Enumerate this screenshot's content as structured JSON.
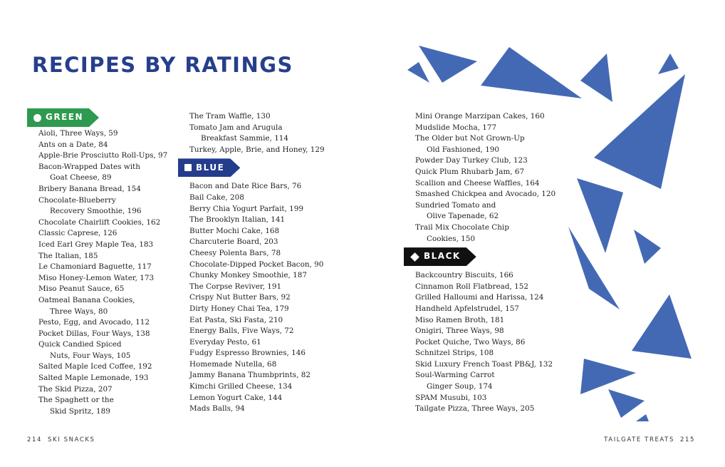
{
  "title": "RECIPES BY RATINGS",
  "colors": {
    "green": "#2e9a4f",
    "blue": "#243c8c",
    "black": "#111111",
    "title": "#263f8c",
    "triangles": "#4469b4"
  },
  "sections": {
    "green": {
      "label": "GREEN",
      "icon": "circle-icon"
    },
    "blue": {
      "label": "BLUE",
      "icon": "square-icon"
    },
    "black": {
      "label": "BLACK",
      "icon": "diamond-icon"
    }
  },
  "columns": [
    [
      {
        "tag": "green"
      },
      {
        "lines": [
          "Aioli, Three Ways, 59"
        ]
      },
      {
        "lines": [
          "Ants on a Date, 84"
        ]
      },
      {
        "lines": [
          "Apple-Brie Prosciutto Roll-Ups, 97"
        ]
      },
      {
        "lines": [
          "Bacon-Wrapped Dates with",
          "Goat Cheese, 89"
        ]
      },
      {
        "lines": [
          "Bribery Banana Bread, 154"
        ]
      },
      {
        "lines": [
          "Chocolate-Blueberry",
          "Recovery Smoothie, 196"
        ]
      },
      {
        "lines": [
          "Chocolate Chairlift Cookies, 162"
        ]
      },
      {
        "lines": [
          "Classic Caprese, 126"
        ]
      },
      {
        "lines": [
          "Iced Earl Grey Maple Tea, 183"
        ]
      },
      {
        "lines": [
          "The Italian, 185"
        ]
      },
      {
        "lines": [
          "Le Chamoniard Baguette, 117"
        ]
      },
      {
        "lines": [
          "Miso Honey-Lemon Water, 173"
        ]
      },
      {
        "lines": [
          "Miso Peanut Sauce, 65"
        ]
      },
      {
        "lines": [
          "Oatmeal Banana Cookies,",
          "Three Ways, 80"
        ]
      },
      {
        "lines": [
          "Pesto, Egg, and Avocado, 112"
        ]
      },
      {
        "lines": [
          "Pocket Dillas, Four Ways, 138"
        ]
      },
      {
        "lines": [
          "Quick Candied Spiced",
          "Nuts, Four Ways, 105"
        ]
      },
      {
        "lines": [
          "Salted Maple Iced Coffee, 192"
        ]
      },
      {
        "lines": [
          "Salted Maple Lemonade, 193"
        ]
      },
      {
        "lines": [
          "The Skid Pizza, 207"
        ]
      },
      {
        "lines": [
          "The Spaghett or the",
          "Skid Spritz, 189"
        ]
      }
    ],
    [
      {
        "lines": [
          "The Tram Waffle, 130"
        ]
      },
      {
        "lines": [
          "Tomato Jam and Arugula",
          "Breakfast Sammie, 114"
        ]
      },
      {
        "lines": [
          "Turkey, Apple, Brie, and Honey, 129"
        ]
      },
      {
        "tag": "blue"
      },
      {
        "lines": [
          "Bacon and Date Rice Bars, 76"
        ]
      },
      {
        "lines": [
          "Bail Cake, 208"
        ]
      },
      {
        "lines": [
          "Berry Chia Yogurt Parfait, 199"
        ]
      },
      {
        "lines": [
          "The Brooklyn Italian, 141"
        ]
      },
      {
        "lines": [
          "Butter Mochi Cake, 168"
        ]
      },
      {
        "lines": [
          "Charcuterie Board, 203"
        ]
      },
      {
        "lines": [
          "Cheesy Polenta Bars, 78"
        ]
      },
      {
        "lines": [
          "Chocolate-Dipped Pocket Bacon, 90"
        ]
      },
      {
        "lines": [
          "Chunky Monkey Smoothie, 187"
        ]
      },
      {
        "lines": [
          "The Corpse Reviver, 191"
        ]
      },
      {
        "lines": [
          "Crispy Nut Butter Bars, 92"
        ]
      },
      {
        "lines": [
          "Dirty Honey Chai Tea, 179"
        ]
      },
      {
        "lines": [
          "Eat Pasta, Ski Fasta, 210"
        ]
      },
      {
        "lines": [
          "Energy Balls, Five Ways, 72"
        ]
      },
      {
        "lines": [
          "Everyday Pesto, 61"
        ]
      },
      {
        "lines": [
          "Fudgy Espresso Brownies, 146"
        ]
      },
      {
        "lines": [
          "Homemade Nutella, 68"
        ]
      },
      {
        "lines": [
          "Jammy Banana Thumbprints, 82"
        ]
      },
      {
        "lines": [
          "Kimchi Grilled Cheese, 134"
        ]
      },
      {
        "lines": [
          "Lemon Yogurt Cake, 144"
        ]
      },
      {
        "lines": [
          "Mads Balls, 94"
        ]
      }
    ],
    [
      {
        "lines": [
          "Mini Orange Marzipan Cakes, 160"
        ]
      },
      {
        "lines": [
          "Mudslide Mocha, 177"
        ]
      },
      {
        "lines": [
          "The Older but Not Grown-Up",
          "Old Fashioned, 190"
        ]
      },
      {
        "lines": [
          "Powder Day Turkey Club, 123"
        ]
      },
      {
        "lines": [
          "Quick Plum Rhubarb Jam, 67"
        ]
      },
      {
        "lines": [
          "Scallion and Cheese Waffles, 164"
        ]
      },
      {
        "lines": [
          "Smashed Chickpea and Avocado, 120"
        ]
      },
      {
        "lines": [
          "Sundried Tomato and",
          "Olive Tapenade, 62"
        ]
      },
      {
        "lines": [
          "Trail Mix Chocolate Chip",
          "Cookies, 150"
        ]
      },
      {
        "tag": "black"
      },
      {
        "lines": [
          "Backcountry Biscuits, 166"
        ]
      },
      {
        "lines": [
          "Cinnamon Roll Flatbread, 152"
        ]
      },
      {
        "lines": [
          "Grilled Halloumi and Harissa, 124"
        ]
      },
      {
        "lines": [
          "Handheld Apfelstrudel, 157"
        ]
      },
      {
        "lines": [
          "Miso Ramen Broth, 181"
        ]
      },
      {
        "lines": [
          "Onigiri, Three Ways, 98"
        ]
      },
      {
        "lines": [
          "Pocket Quiche, Two Ways, 86"
        ]
      },
      {
        "lines": [
          "Schnitzel Strips, 108"
        ]
      },
      {
        "lines": [
          "Skid Luxury French Toast PB&J, 132"
        ]
      },
      {
        "lines": [
          "Soul-Warming Carrot",
          "Ginger Soup, 174"
        ]
      },
      {
        "lines": [
          "SPAM Musubi, 103"
        ]
      },
      {
        "lines": [
          "Tailgate Pizza, Three Ways, 205"
        ]
      }
    ]
  ],
  "footer": {
    "left_page": "214",
    "left_label": "SKI SNACKS",
    "right_label": "TAILGATE TREATS",
    "right_page": "215"
  }
}
